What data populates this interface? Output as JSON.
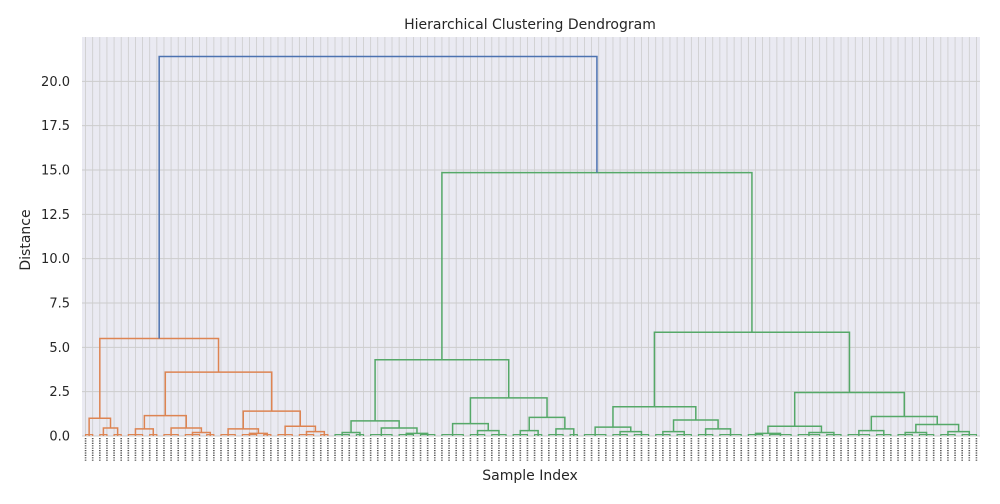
{
  "chart_data": {
    "type": "dendrogram",
    "title": "Hierarchical Clustering Dendrogram",
    "xlabel": "Sample Index",
    "ylabel": "Distance",
    "ylim": [
      0,
      22.5
    ],
    "yticks": [
      0.0,
      2.5,
      5.0,
      7.5,
      10.0,
      12.5,
      15.0,
      17.5,
      20.0
    ],
    "grid": true,
    "colors": {
      "cluster_1": "#dd8452",
      "cluster_2": "#55a868",
      "above_threshold": "#4c72b0",
      "grid": "#cccccc",
      "background": "#eaeaf2"
    },
    "tree": {
      "h": 21.4,
      "c": "above_threshold",
      "children": [
        {
          "h": 5.5,
          "c": "cluster_1",
          "children": [
            {
              "h": 1.0,
              "c": "cluster_1",
              "children": [
                {
                  "leaves": 2
                },
                {
                  "h": 0.45,
                  "c": "cluster_1",
                  "children": [
                    {
                      "leaves": 2
                    },
                    {
                      "leaves": 2
                    }
                  ]
                }
              ]
            },
            {
              "h": 3.6,
              "c": "cluster_1",
              "children": [
                {
                  "h": 1.15,
                  "c": "cluster_1",
                  "children": [
                    {
                      "h": 0.4,
                      "c": "cluster_1",
                      "children": [
                        {
                          "leaves": 3
                        },
                        {
                          "leaves": 2
                        }
                      ]
                    },
                    {
                      "h": 0.45,
                      "c": "cluster_1",
                      "children": [
                        {
                          "leaves": 3
                        },
                        {
                          "h": 0.2,
                          "c": "cluster_1",
                          "children": [
                            {
                              "leaves": 3
                            },
                            {
                              "leaves": 2
                            }
                          ]
                        }
                      ]
                    }
                  ]
                },
                {
                  "h": 1.4,
                  "c": "cluster_1",
                  "children": [
                    {
                      "h": 0.4,
                      "c": "cluster_1",
                      "children": [
                        {
                          "leaves": 3
                        },
                        {
                          "h": 0.15,
                          "c": "cluster_1",
                          "children": [
                            {
                              "leaves": 3
                            },
                            {
                              "leaves": 2
                            }
                          ]
                        }
                      ]
                    },
                    {
                      "h": 0.55,
                      "c": "cluster_1",
                      "children": [
                        {
                          "leaves": 3
                        },
                        {
                          "h": 0.25,
                          "c": "cluster_1",
                          "children": [
                            {
                              "leaves": 3
                            },
                            {
                              "leaves": 2
                            }
                          ]
                        }
                      ]
                    }
                  ]
                }
              ]
            }
          ]
        },
        {
          "h": 14.85,
          "c": "cluster_2",
          "children": [
            {
              "h": 4.3,
              "c": "cluster_2",
              "children": [
                {
                  "h": 0.85,
                  "c": "cluster_2",
                  "children": [
                    {
                      "h": 0.2,
                      "c": "cluster_2",
                      "children": [
                        {
                          "leaves": 3
                        },
                        {
                          "leaves": 2
                        }
                      ]
                    },
                    {
                      "h": 0.45,
                      "c": "cluster_2",
                      "children": [
                        {
                          "leaves": 4
                        },
                        {
                          "h": 0.15,
                          "c": "cluster_2",
                          "children": [
                            {
                              "leaves": 3
                            },
                            {
                              "leaves": 3
                            }
                          ]
                        }
                      ]
                    }
                  ]
                },
                {
                  "h": 2.15,
                  "c": "cluster_2",
                  "children": [
                    {
                      "h": 0.7,
                      "c": "cluster_2",
                      "children": [
                        {
                          "leaves": 4
                        },
                        {
                          "h": 0.3,
                          "c": "cluster_2",
                          "children": [
                            {
                              "leaves": 3
                            },
                            {
                              "leaves": 3
                            }
                          ]
                        }
                      ]
                    },
                    {
                      "h": 1.05,
                      "c": "cluster_2",
                      "children": [
                        {
                          "h": 0.3,
                          "c": "cluster_2",
                          "children": [
                            {
                              "leaves": 3
                            },
                            {
                              "leaves": 2
                            }
                          ]
                        },
                        {
                          "h": 0.4,
                          "c": "cluster_2",
                          "children": [
                            {
                              "leaves": 3
                            },
                            {
                              "leaves": 2
                            }
                          ]
                        }
                      ]
                    }
                  ]
                }
              ]
            },
            {
              "h": 5.85,
              "c": "cluster_2",
              "children": [
                {
                  "h": 1.65,
                  "c": "cluster_2",
                  "children": [
                    {
                      "h": 0.5,
                      "c": "cluster_2",
                      "children": [
                        {
                          "leaves": 4
                        },
                        {
                          "h": 0.25,
                          "c": "cluster_2",
                          "children": [
                            {
                              "leaves": 3
                            },
                            {
                              "leaves": 3
                            }
                          ]
                        }
                      ]
                    },
                    {
                      "h": 0.9,
                      "c": "cluster_2",
                      "children": [
                        {
                          "h": 0.25,
                          "c": "cluster_2",
                          "children": [
                            {
                              "leaves": 3
                            },
                            {
                              "leaves": 3
                            }
                          ]
                        },
                        {
                          "h": 0.4,
                          "c": "cluster_2",
                          "children": [
                            {
                              "leaves": 3
                            },
                            {
                              "leaves": 4
                            }
                          ]
                        }
                      ]
                    }
                  ]
                },
                {
                  "h": 2.45,
                  "c": "cluster_2",
                  "children": [
                    {
                      "h": 0.55,
                      "c": "cluster_2",
                      "children": [
                        {
                          "h": 0.15,
                          "c": "cluster_2",
                          "children": [
                            {
                              "leaves": 3
                            },
                            {
                              "leaves": 4
                            }
                          ]
                        },
                        {
                          "h": 0.2,
                          "c": "cluster_2",
                          "children": [
                            {
                              "leaves": 4
                            },
                            {
                              "leaves": 3
                            }
                          ]
                        }
                      ]
                    },
                    {
                      "h": 1.1,
                      "c": "cluster_2",
                      "children": [
                        {
                          "h": 0.3,
                          "c": "cluster_2",
                          "children": [
                            {
                              "leaves": 4
                            },
                            {
                              "leaves": 3
                            }
                          ]
                        },
                        {
                          "h": 0.65,
                          "c": "cluster_2",
                          "children": [
                            {
                              "h": 0.2,
                              "c": "cluster_2",
                              "children": [
                                {
                                  "leaves": 3
                                },
                                {
                                  "leaves": 3
                                }
                              ]
                            },
                            {
                              "h": 0.25,
                              "c": "cluster_2",
                              "children": [
                                {
                                  "leaves": 3
                                },
                                {
                                  "leaves": 3
                                }
                              ]
                            }
                          ]
                        }
                      ]
                    }
                  ]
                }
              ]
            }
          ]
        }
      ]
    }
  }
}
